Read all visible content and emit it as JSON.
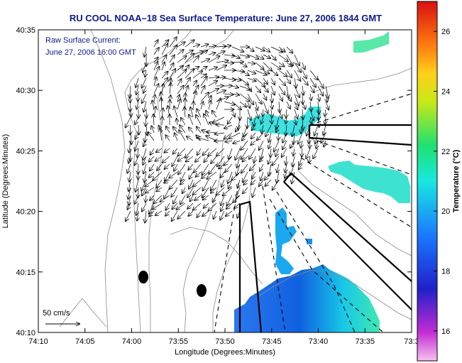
{
  "figure": {
    "title": "RU COOL  NOAA–18  Sea Surface Temperature:  June 27, 2006 1844 GMT",
    "annotation_line1": "Raw Surface Current:",
    "annotation_line2": "June 27, 2006 16:00 GMT",
    "scale_label": "50 cm/s",
    "xlabel": "Longitude (Degrees:Minutes)",
    "ylabel": "Latitude (Degrees:Minutes)",
    "colorbar_label": "Temperature (°C)"
  },
  "chart_data": {
    "type": "heatmap",
    "title": "RU COOL  NOAA–18  Sea Surface Temperature:  June 27, 2006 1844 GMT",
    "xlabel": "Longitude (Degrees:Minutes)",
    "ylabel": "Latitude (Degrees:Minutes)",
    "x_ticks": [
      "74:10",
      "74:05",
      "74:00",
      "73:55",
      "73:50",
      "73:45",
      "73:40",
      "73:35",
      "73:3"
    ],
    "y_ticks": [
      "40:35",
      "40:30",
      "40:25",
      "40:20",
      "40:15",
      "40:10"
    ],
    "xlim_deg_min": [
      "74:10",
      "73:30"
    ],
    "ylim_deg_min": [
      "40:10",
      "40:35"
    ],
    "colorbar": {
      "label": "Temperature (°C)",
      "ticks": [
        16,
        18,
        20,
        22,
        24,
        26
      ],
      "range": [
        15,
        27
      ]
    },
    "vector_scale_cm_s": 50,
    "sst_patches_approx_C": [
      {
        "region": "south-central offshore",
        "temp_C": 18
      },
      {
        "region": "eastern plume",
        "temp_C": 20
      },
      {
        "region": "northeast corner",
        "temp_C": 21
      }
    ]
  },
  "colors": {
    "title": "#0d1a8f",
    "land_contour": "#8c8c8c",
    "vectors": "#000000"
  }
}
